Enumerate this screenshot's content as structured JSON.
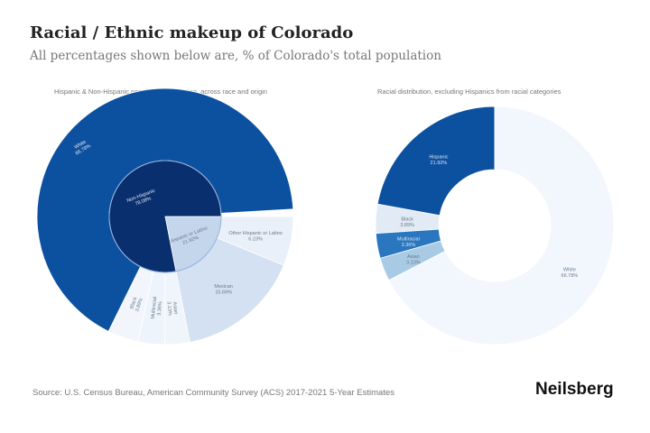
{
  "title": "Racial / Ethnic makeup of Colorado",
  "subtitle": "All percentages shown below are, % of Colorado's total population",
  "source": "Source: U.S. Census Bureau, American Community Survey (ACS) 2017-2021 5-Year Estimates",
  "logo": "Neilsberg",
  "chart_data": [
    {
      "type": "sunburst",
      "title": "Hispanic & Non-Hispanic population distribution, across race and origin",
      "inner": [
        {
          "label": "Hispanic or Latino",
          "value": 21.92,
          "color": "#c3d6ec",
          "children": [
            {
              "label": "Other Hispanic or Latino",
              "value": 6.23,
              "color": "#e9f0f9"
            },
            {
              "label": "Mexican",
              "value": 15.69,
              "color": "#d3e1f2"
            }
          ]
        },
        {
          "label": "Non-Hispanic",
          "value": 78.08,
          "color": "#0a2f6e",
          "children": [
            {
              "label": "Asian",
              "value": 3.13,
              "color": "#f0f5fb"
            },
            {
              "label": "Multiracial",
              "value": 3.36,
              "color": "#eef4fb"
            },
            {
              "label": "Black",
              "value": 3.89,
              "color": "#f2f6fc"
            },
            {
              "label": "White",
              "value": 66.78,
              "color": "#0c51a0"
            }
          ]
        }
      ]
    },
    {
      "type": "donut",
      "title": "Racial distribution, excluding Hispanics from racial categories",
      "slices": [
        {
          "label": "Hispanic",
          "value": 21.92,
          "color": "#0c51a0"
        },
        {
          "label": "Black",
          "value": 3.89,
          "color": "#e1eaf5"
        },
        {
          "label": "Multiracial",
          "value": 3.36,
          "color": "#2a77bf"
        },
        {
          "label": "Asian",
          "value": 3.13,
          "color": "#a8cae4"
        },
        {
          "label": "White",
          "value": 66.78,
          "color": "#f2f7fd"
        }
      ]
    }
  ]
}
